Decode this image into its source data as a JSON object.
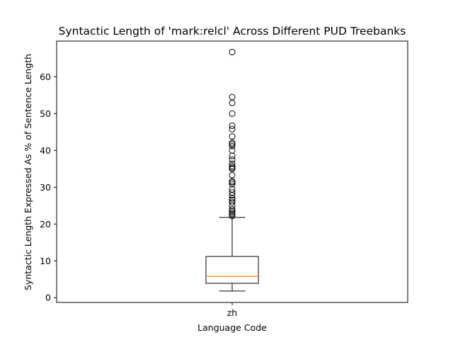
{
  "chart_data": {
    "type": "box",
    "title": "Syntactic Length of 'mark:relcl' Across Different PUD Treebanks",
    "xlabel": "Language Code",
    "ylabel": "Syntactic Length Expressed As % of Sentence Length",
    "categories": [
      "zh"
    ],
    "ylim": [
      -1.3,
      69.7
    ],
    "yticks": [
      0,
      10,
      20,
      30,
      40,
      50,
      60
    ],
    "grid": false,
    "boxes": [
      {
        "category": "zh",
        "whisker_low": 1.8,
        "q1": 3.9,
        "median": 5.8,
        "q3": 11.2,
        "whisker_high": 21.8,
        "outliers": [
          22.2,
          22.7,
          23.1,
          23.5,
          24.0,
          25.0,
          25.9,
          26.5,
          27.0,
          27.8,
          28.6,
          29.4,
          30.8,
          31.3,
          31.6,
          33.3,
          35.0,
          35.3,
          35.7,
          36.4,
          37.5,
          38.5,
          40.0,
          41.2,
          41.7,
          42.1,
          43.8,
          45.8,
          46.7,
          50.0,
          52.9,
          54.5,
          66.7
        ]
      }
    ],
    "colors": {
      "box": "#000000",
      "median": "#ff7f0e",
      "outlier": "#000000"
    }
  }
}
